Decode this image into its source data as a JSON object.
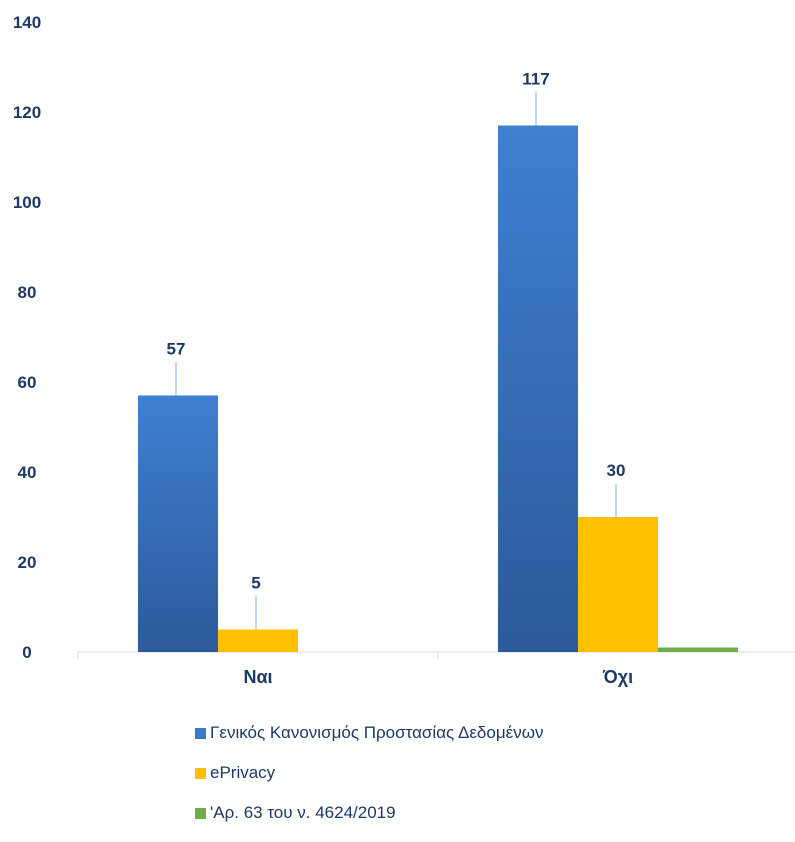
{
  "chart_data": {
    "type": "bar",
    "categories": [
      "Ναι",
      "Όχι"
    ],
    "series": [
      {
        "name": "Γενικός Κανονισμός Προστασίας Δεδομένων",
        "values": [
          57,
          117
        ],
        "labels": [
          "57",
          "117"
        ],
        "color": "#3a78c8"
      },
      {
        "name": "ePrivacy",
        "values": [
          5,
          30
        ],
        "labels": [
          "5",
          "30"
        ],
        "color": "#ffc000"
      },
      {
        "name": "'Αρ. 63 του ν. 4624/2019",
        "values": [
          0,
          1
        ],
        "labels": [
          "",
          ""
        ],
        "color": "#70ad47"
      }
    ],
    "y_ticks": [
      "0",
      "20",
      "40",
      "60",
      "80",
      "100",
      "120",
      "140"
    ],
    "ylim": [
      0,
      140
    ],
    "grid": false,
    "legend_position": "bottom"
  }
}
